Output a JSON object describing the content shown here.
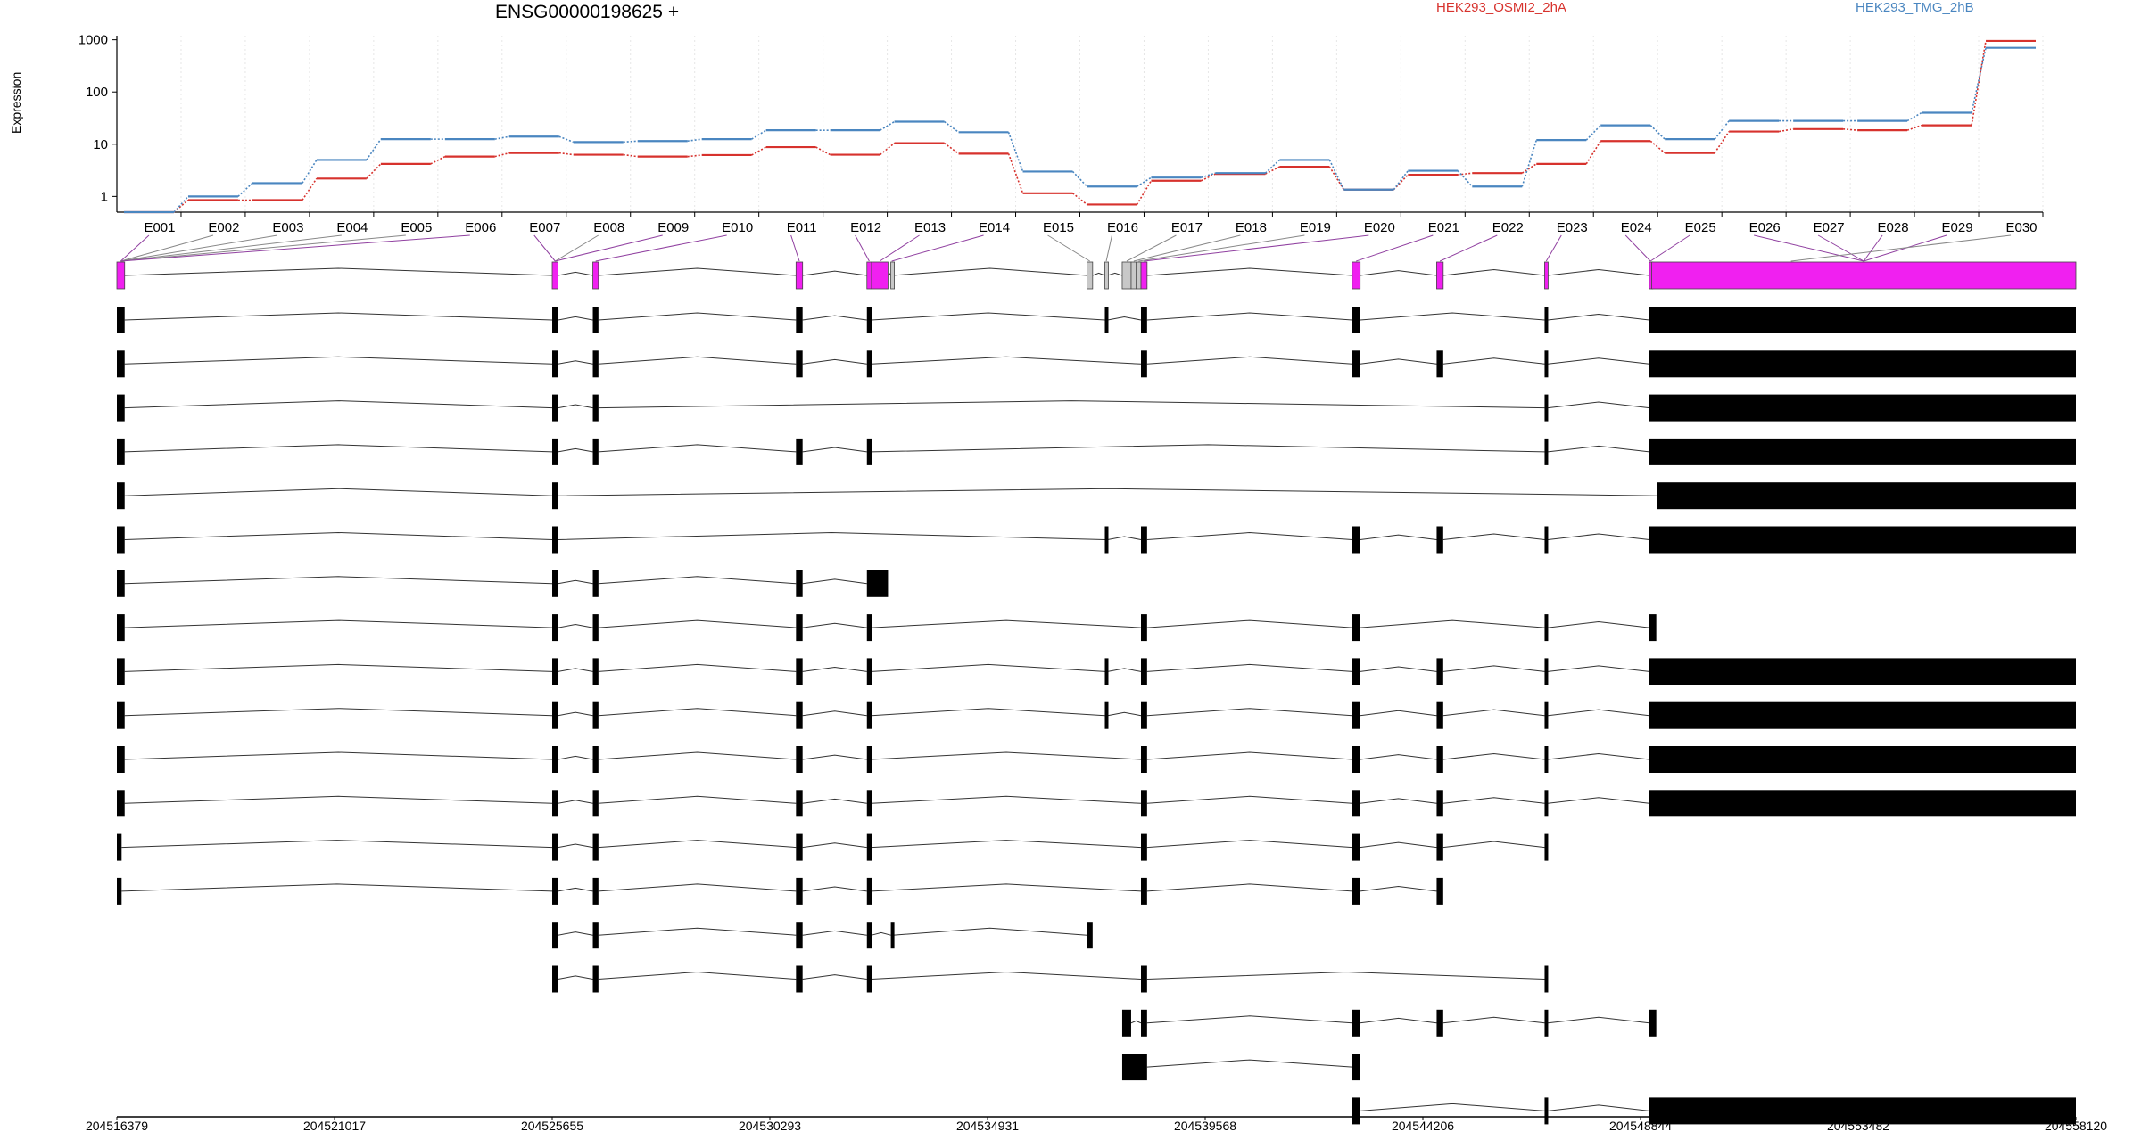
{
  "header": {
    "gene": "ENSG00000198625 +",
    "ylabel": "Expression"
  },
  "colors": {
    "series_a": "#d7322d",
    "series_b": "#4a86c0",
    "exon_highlight": "#f020f0",
    "exon_grey": "#c8c8c8",
    "exon": "#000000",
    "connector": "#9040a0"
  },
  "chart_data": {
    "type": "line",
    "title": "ENSG00000198625 +",
    "ylabel": "Expression",
    "yscale": "log",
    "ylim": [
      0.5,
      1200
    ],
    "yticks": [
      "1",
      "10",
      "100",
      "1000"
    ],
    "categories": [
      "E001",
      "E002",
      "E003",
      "E004",
      "E005",
      "E006",
      "E007",
      "E008",
      "E009",
      "E010",
      "E011",
      "E012",
      "E013",
      "E014",
      "E015",
      "E016",
      "E017",
      "E018",
      "E019",
      "E020",
      "E021",
      "E022",
      "E023",
      "E024",
      "E025",
      "E026",
      "E027",
      "E028",
      "E029",
      "E030"
    ],
    "series": [
      {
        "name": "HEK293_OSMI2_2hA",
        "color": "#d7322d",
        "values": [
          0.5,
          0.85,
          0.85,
          2.2,
          4.2,
          5.8,
          6.8,
          6.3,
          5.8,
          6.2,
          8.8,
          6.3,
          10.5,
          6.6,
          1.15,
          0.7,
          2.0,
          2.7,
          3.7,
          1.35,
          2.6,
          2.8,
          4.2,
          11.5,
          6.8,
          17.5,
          19.5,
          18.5,
          23,
          950
        ]
      },
      {
        "name": "HEK293_TMG_2hB",
        "color": "#4a86c0",
        "values": [
          0.5,
          1.0,
          1.8,
          5.0,
          12.5,
          12.5,
          14.0,
          11.0,
          11.5,
          12.5,
          18.5,
          18.5,
          27,
          17,
          3.0,
          1.55,
          2.3,
          2.8,
          5.0,
          1.35,
          3.1,
          1.55,
          12.0,
          23,
          12.5,
          28,
          28,
          28,
          40,
          700
        ]
      }
    ]
  },
  "genomic_axis": {
    "range": [
      204516379,
      204558120
    ],
    "tick_labels": [
      "204516379",
      "204521017",
      "204525655",
      "204530293",
      "204534931",
      "204539568",
      "204544206",
      "204548844",
      "204553482",
      "204558120"
    ]
  },
  "model_exons": [
    [
      204516379,
      204516545,
      "h"
    ],
    [
      204525655,
      204525780,
      "h"
    ],
    [
      204526520,
      204526640,
      "h"
    ],
    [
      204530850,
      204530990,
      "h"
    ],
    [
      204532360,
      204532460,
      "h"
    ],
    [
      204532460,
      204532810,
      "h"
    ],
    [
      204532870,
      204532910,
      "g"
    ],
    [
      204537050,
      204537170,
      "g"
    ],
    [
      204537430,
      204537490,
      "g"
    ],
    [
      204537800,
      204537990,
      "g"
    ],
    [
      204537990,
      204538100,
      "g"
    ],
    [
      204538100,
      204538200,
      "g"
    ],
    [
      204538200,
      204538330,
      "h"
    ],
    [
      204542700,
      204542870,
      "h"
    ],
    [
      204544500,
      204544640,
      "h"
    ],
    [
      204546800,
      204546870,
      "h"
    ],
    [
      204549030,
      204549080,
      "h"
    ],
    [
      204549080,
      204558120,
      "h"
    ]
  ],
  "connector_targets": [
    [
      204516379,
      204516545,
      "h"
    ],
    [
      204516379,
      204516545,
      "g"
    ],
    [
      204516379,
      204516545,
      "g"
    ],
    [
      204516379,
      204516545,
      "g"
    ],
    [
      204516379,
      204516545,
      "g"
    ],
    [
      204516379,
      204516545,
      "h"
    ],
    [
      204525655,
      204525780,
      "h"
    ],
    [
      204525655,
      204525780,
      "g"
    ],
    [
      204525655,
      204525780,
      "h"
    ],
    [
      204526520,
      204526640,
      "h"
    ],
    [
      204530850,
      204530990,
      "h"
    ],
    [
      204532360,
      204532460,
      "h"
    ],
    [
      204532460,
      204532810,
      "h"
    ],
    [
      204532870,
      204532910,
      "h"
    ],
    [
      204537050,
      204537170,
      "g"
    ],
    [
      204537430,
      204537490,
      "g"
    ],
    [
      204537800,
      204537990,
      "g"
    ],
    [
      204537990,
      204538100,
      "g"
    ],
    [
      204538100,
      204538200,
      "g"
    ],
    [
      204538200,
      204538330,
      "h"
    ],
    [
      204542700,
      204542870,
      "h"
    ],
    [
      204544500,
      204544640,
      "h"
    ],
    [
      204546800,
      204546870,
      "h"
    ],
    [
      204549030,
      204549080,
      "h"
    ],
    [
      204549030,
      204549080,
      "h"
    ],
    [
      204549080,
      204558120,
      "h"
    ],
    [
      204549080,
      204558120,
      "h"
    ],
    [
      204549080,
      204558120,
      "h"
    ],
    [
      204549080,
      204558120,
      "h"
    ],
    [
      204552000,
      204552100,
      "g"
    ]
  ],
  "transcripts": [
    [
      [
        204516379,
        204516545
      ],
      [
        204525655,
        204525780
      ],
      [
        204526520,
        204526640
      ],
      [
        204530850,
        204530990
      ],
      [
        204532360,
        204532460
      ],
      [
        204537430,
        204537490
      ],
      [
        204538200,
        204538330
      ],
      [
        204542700,
        204542870
      ],
      [
        204546800,
        204546870
      ],
      [
        204549030,
        204558120
      ]
    ],
    [
      [
        204516379,
        204516545
      ],
      [
        204525655,
        204525780
      ],
      [
        204526520,
        204526640
      ],
      [
        204530850,
        204530990
      ],
      [
        204532360,
        204532460
      ],
      [
        204538200,
        204538330
      ],
      [
        204542700,
        204542870
      ],
      [
        204544500,
        204544640
      ],
      [
        204546800,
        204546870
      ],
      [
        204549030,
        204558120
      ]
    ],
    [
      [
        204516379,
        204516545
      ],
      [
        204525655,
        204525780
      ],
      [
        204526520,
        204526640
      ],
      [
        204546800,
        204546870
      ],
      [
        204549030,
        204558120
      ]
    ],
    [
      [
        204516379,
        204516545
      ],
      [
        204525655,
        204525780
      ],
      [
        204526520,
        204526640
      ],
      [
        204530850,
        204530990
      ],
      [
        204532360,
        204532460
      ],
      [
        204546800,
        204546870
      ],
      [
        204549030,
        204558120
      ]
    ],
    [
      [
        204516379,
        204516545
      ],
      [
        204525655,
        204525780
      ],
      [
        204549200,
        204558120
      ]
    ],
    [
      [
        204516379,
        204516545
      ],
      [
        204525655,
        204525780
      ],
      [
        204537430,
        204537490
      ],
      [
        204538200,
        204538330
      ],
      [
        204542700,
        204542870
      ],
      [
        204544500,
        204544640
      ],
      [
        204546800,
        204546870
      ],
      [
        204549030,
        204558120
      ]
    ],
    [
      [
        204516379,
        204516545
      ],
      [
        204525655,
        204525780
      ],
      [
        204526520,
        204526640
      ],
      [
        204530850,
        204530990
      ],
      [
        204532360,
        204532810
      ]
    ],
    [
      [
        204516379,
        204516545
      ],
      [
        204525655,
        204525780
      ],
      [
        204526520,
        204526640
      ],
      [
        204530850,
        204530990
      ],
      [
        204532360,
        204532460
      ],
      [
        204538200,
        204538330
      ],
      [
        204542700,
        204542870
      ],
      [
        204546800,
        204546870
      ],
      [
        204549030,
        204549180
      ]
    ],
    [
      [
        204516379,
        204516545
      ],
      [
        204525655,
        204525780
      ],
      [
        204526520,
        204526640
      ],
      [
        204530850,
        204530990
      ],
      [
        204532360,
        204532460
      ],
      [
        204537430,
        204537490
      ],
      [
        204538200,
        204538330
      ],
      [
        204542700,
        204542870
      ],
      [
        204544500,
        204544640
      ],
      [
        204546800,
        204546870
      ],
      [
        204549030,
        204558120
      ]
    ],
    [
      [
        204516379,
        204516545
      ],
      [
        204525655,
        204525780
      ],
      [
        204526520,
        204526640
      ],
      [
        204530850,
        204530990
      ],
      [
        204532360,
        204532460
      ],
      [
        204537430,
        204537490
      ],
      [
        204538200,
        204538330
      ],
      [
        204542700,
        204542870
      ],
      [
        204544500,
        204544640
      ],
      [
        204546800,
        204546870
      ],
      [
        204549030,
        204558120
      ]
    ],
    [
      [
        204516379,
        204516545
      ],
      [
        204525655,
        204525780
      ],
      [
        204526520,
        204526640
      ],
      [
        204530850,
        204530990
      ],
      [
        204532360,
        204532460
      ],
      [
        204538200,
        204538330
      ],
      [
        204542700,
        204542870
      ],
      [
        204544500,
        204544640
      ],
      [
        204546800,
        204546870
      ],
      [
        204549030,
        204558120
      ]
    ],
    [
      [
        204516379,
        204516545
      ],
      [
        204525655,
        204525780
      ],
      [
        204526520,
        204526640
      ],
      [
        204530850,
        204530990
      ],
      [
        204532360,
        204532460
      ],
      [
        204538200,
        204538330
      ],
      [
        204542700,
        204542870
      ],
      [
        204544500,
        204544640
      ],
      [
        204546800,
        204546870
      ],
      [
        204549030,
        204558120
      ]
    ],
    [
      [
        204516379,
        204516480
      ],
      [
        204525655,
        204525780
      ],
      [
        204526520,
        204526640
      ],
      [
        204530850,
        204530990
      ],
      [
        204532360,
        204532460
      ],
      [
        204538200,
        204538330
      ],
      [
        204542700,
        204542870
      ],
      [
        204544500,
        204544640
      ],
      [
        204546800,
        204546870
      ]
    ],
    [
      [
        204516379,
        204516480
      ],
      [
        204525655,
        204525780
      ],
      [
        204526520,
        204526640
      ],
      [
        204530850,
        204530990
      ],
      [
        204532360,
        204532460
      ],
      [
        204538200,
        204538330
      ],
      [
        204542700,
        204542870
      ],
      [
        204544500,
        204544640
      ]
    ],
    [
      [
        204525655,
        204525780
      ],
      [
        204526520,
        204526640
      ],
      [
        204530850,
        204530990
      ],
      [
        204532360,
        204532460
      ],
      [
        204532870,
        204532910
      ],
      [
        204537050,
        204537170
      ]
    ],
    [
      [
        204525655,
        204525780
      ],
      [
        204526520,
        204526640
      ],
      [
        204530850,
        204530990
      ],
      [
        204532360,
        204532460
      ],
      [
        204538200,
        204538330
      ],
      [
        204546800,
        204546870
      ]
    ],
    [
      [
        204537800,
        204537990
      ],
      [
        204538200,
        204538330
      ],
      [
        204542700,
        204542870
      ],
      [
        204544500,
        204544640
      ],
      [
        204546800,
        204546870
      ],
      [
        204549030,
        204549180
      ]
    ],
    [
      [
        204537800,
        204538330
      ],
      [
        204542700,
        204542870
      ]
    ],
    [
      [
        204542700,
        204542870
      ],
      [
        204546800,
        204546870
      ],
      [
        204549030,
        204558120
      ]
    ]
  ]
}
